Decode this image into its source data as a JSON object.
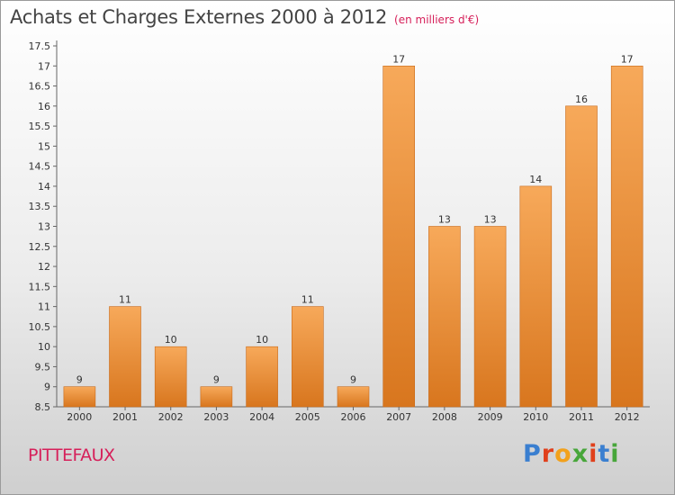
{
  "header": {
    "title": "Achats et Charges Externes 2000 à 2012",
    "unit": "(en milliers d'€)"
  },
  "footer": {
    "place": "PITTEFAUX",
    "logo": [
      "P",
      "r",
      "o",
      "x",
      "i",
      "t",
      "i"
    ]
  },
  "colors": {
    "bar_top": "#f7a95a",
    "bar_bottom": "#d8761e",
    "bar_stroke": "#c86a1a",
    "accent": "#d6205a"
  },
  "chart_data": {
    "type": "bar",
    "title": "Achats et Charges Externes 2000 à 2012",
    "xlabel": "",
    "ylabel": "",
    "categories": [
      "2000",
      "2001",
      "2002",
      "2003",
      "2004",
      "2005",
      "2006",
      "2007",
      "2008",
      "2009",
      "2010",
      "2011",
      "2012"
    ],
    "values": [
      9,
      11,
      10,
      9,
      10,
      11,
      9,
      17,
      13,
      13,
      14,
      16,
      17
    ],
    "ylim": [
      8.5,
      17.5
    ],
    "yticks": [
      "8.5",
      "9",
      "9.5",
      "10",
      "10.5",
      "11",
      "11.5",
      "12",
      "12.5",
      "13",
      "13.5",
      "14",
      "14.5",
      "15",
      "15.5",
      "16",
      "16.5",
      "17",
      "17.5"
    ],
    "grid": false,
    "legend": "none"
  }
}
